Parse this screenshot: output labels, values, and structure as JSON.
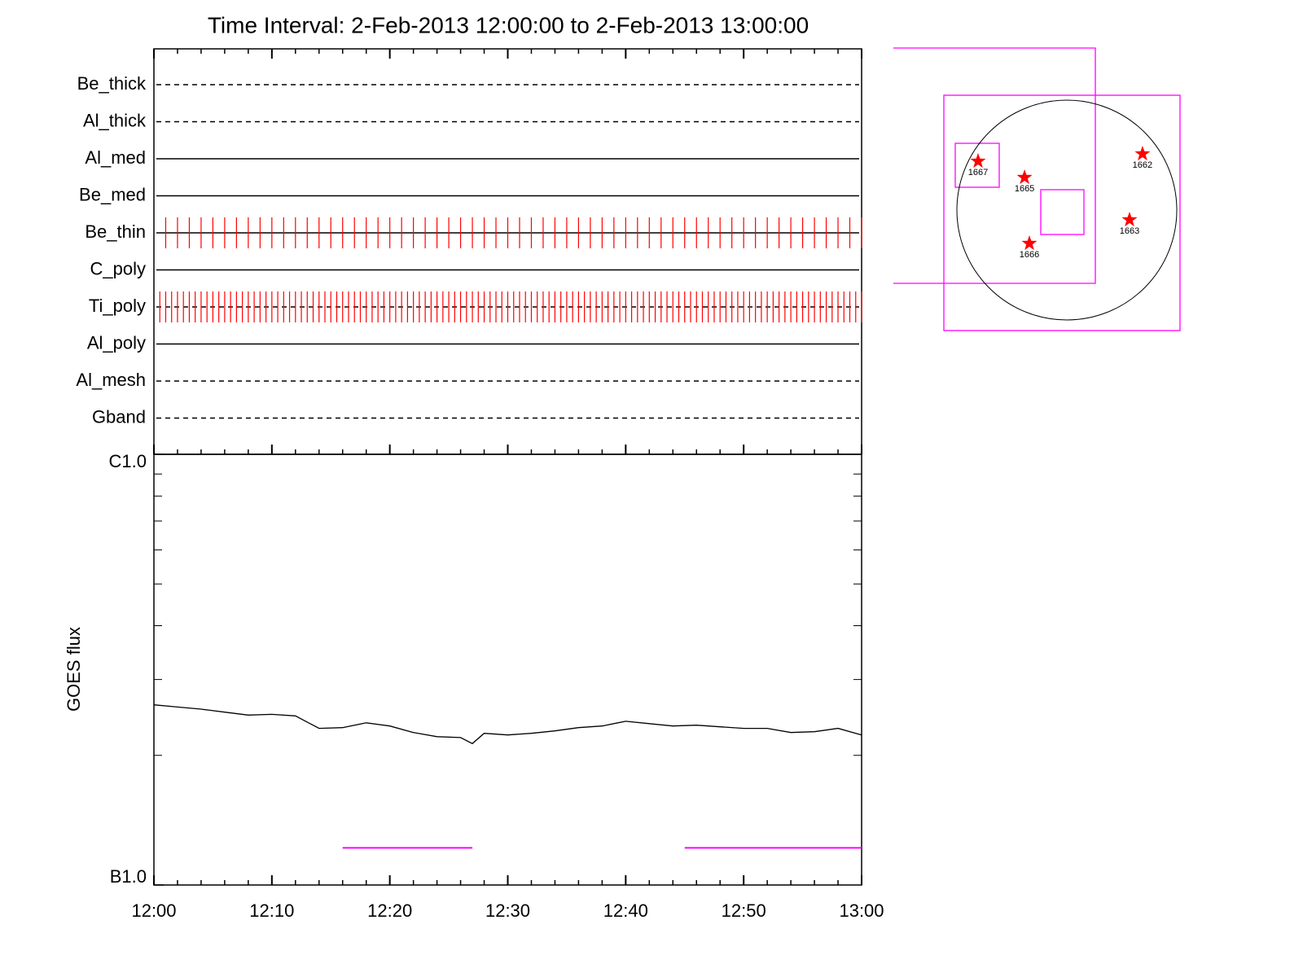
{
  "chart_data": [
    {
      "type": "timeline",
      "title": "Time Interval:  2-Feb-2013 12:00:00 to  2-Feb-2013 13:00:00",
      "categories": [
        "Be_thick",
        "Al_thick",
        "Al_med",
        "Be_med",
        "Be_thin",
        "C_poly",
        "Ti_poly",
        "Al_poly",
        "Al_mesh",
        "Gband"
      ],
      "styles": [
        "dashed",
        "dashed",
        "solid",
        "solid",
        "solid",
        "solid",
        "dashed",
        "solid",
        "dashed",
        "dashed"
      ],
      "mark_every": [
        null,
        null,
        null,
        null,
        1,
        null,
        0.5,
        null,
        null,
        null
      ],
      "mark_color": "#ff0000",
      "xlim": [
        "12:00",
        "13:00"
      ]
    },
    {
      "type": "line",
      "ylabel": "GOES flux",
      "log_y": true,
      "ylim": [
        1e-07,
        1e-06
      ],
      "yticks": [
        {
          "value": 1e-06,
          "label": "C1.0"
        },
        {
          "value": 1e-07,
          "label": "B1.0"
        }
      ],
      "minor_yticks": [
        2e-07,
        3e-07,
        4e-07,
        5e-07,
        6e-07,
        7e-07,
        8e-07,
        9e-07
      ],
      "xlim": [
        "12:00",
        "13:00"
      ],
      "xticks": [
        "12:00",
        "12:10",
        "12:20",
        "12:30",
        "12:40",
        "12:50",
        "13:00"
      ],
      "x_minor_step": 2,
      "x": [
        "12:00",
        "12:02",
        "12:04",
        "12:06",
        "12:08",
        "12:10",
        "12:12",
        "12:14",
        "12:16",
        "12:18",
        "12:20",
        "12:22",
        "12:24",
        "12:26",
        "12:27",
        "12:28",
        "12:30",
        "12:32",
        "12:34",
        "12:36",
        "12:38",
        "12:40",
        "12:42",
        "12:44",
        "12:46",
        "12:48",
        "12:50",
        "12:52",
        "12:54",
        "12:56",
        "12:58",
        "13:00"
      ],
      "series": [
        {
          "color": "#000000",
          "values": [
            2.62e-07,
            2.59e-07,
            2.56e-07,
            2.52e-07,
            2.48e-07,
            2.49e-07,
            2.47e-07,
            2.31e-07,
            2.32e-07,
            2.38e-07,
            2.34e-07,
            2.26e-07,
            2.21e-07,
            2.2e-07,
            2.13e-07,
            2.25e-07,
            2.23e-07,
            2.25e-07,
            2.28e-07,
            2.32e-07,
            2.34e-07,
            2.4e-07,
            2.37e-07,
            2.34e-07,
            2.35e-07,
            2.33e-07,
            2.31e-07,
            2.31e-07,
            2.26e-07,
            2.27e-07,
            2.31e-07,
            2.23e-07
          ]
        }
      ],
      "intervals": [
        [
          "12:16",
          "12:27"
        ],
        [
          "12:45",
          "13:00"
        ]
      ],
      "interval_level": 1.22e-07,
      "interval_color": "#ff00ff"
    }
  ],
  "map": {
    "disk_radius": 975,
    "color": "#ff0000",
    "regions": [
      {
        "label": "1667",
        "x": -787,
        "y": 433
      },
      {
        "label": "1665",
        "x": -375,
        "y": 289
      },
      {
        "label": "1662",
        "x": 671,
        "y": 498
      },
      {
        "label": "1663",
        "x": 556,
        "y": -87
      },
      {
        "label": "1666",
        "x": -332,
        "y": -296
      }
    ]
  }
}
